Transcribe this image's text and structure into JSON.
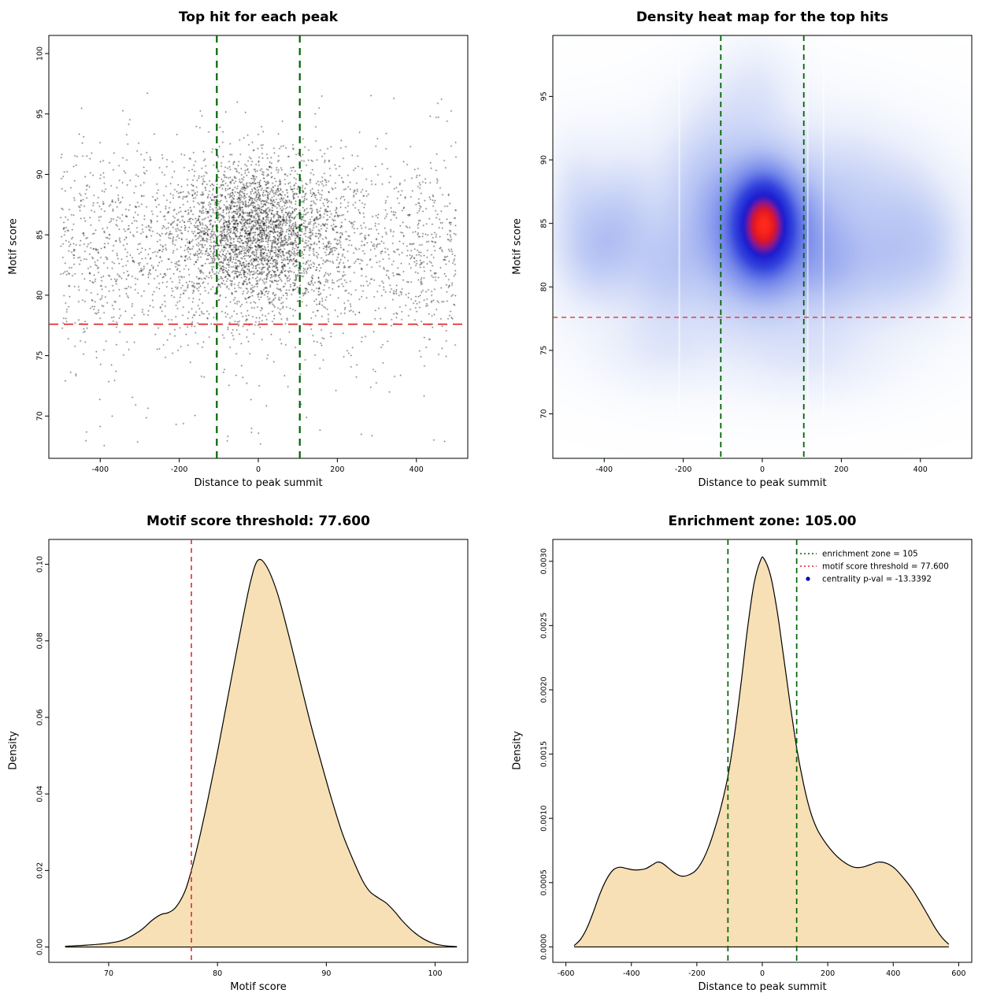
{
  "chart_data": [
    {
      "type": "scatter",
      "title": "Top hit for each peak",
      "xlabel": "Distance to peak summit",
      "ylabel": "Motif score",
      "xlim": [
        -530,
        530
      ],
      "ylim": [
        66.5,
        101.5
      ],
      "xticks": [
        -400,
        -200,
        0,
        200,
        400
      ],
      "xtick_labels": [
        "-400",
        "-200",
        "0",
        "200",
        "400"
      ],
      "yticks": [
        70,
        75,
        80,
        85,
        90,
        95,
        100
      ],
      "ytick_labels": [
        "70",
        "75",
        "80",
        "85",
        "90",
        "95",
        "100"
      ],
      "point_color": "#000000",
      "points_spec": {
        "seed": 42,
        "clip": {
          "x": [
            -500,
            500
          ],
          "y": [
            67,
            100.6
          ]
        },
        "clusters": [
          {
            "n": 2600,
            "x": {
              "dist": "normal",
              "mean": -5,
              "sd": 95
            },
            "y": {
              "dist": "normal",
              "mean": 85.3,
              "sd": 3.0
            }
          },
          {
            "n": 2200,
            "x": {
              "dist": "uniform",
              "min": -500,
              "max": 500
            },
            "y": {
              "dist": "normal",
              "mean": 83.8,
              "sd": 4.0
            }
          },
          {
            "n": 60,
            "x": {
              "dist": "uniform",
              "min": -480,
              "max": 480
            },
            "y": {
              "dist": "uniform",
              "min": 67.5,
              "max": 76.5
            }
          }
        ]
      },
      "vlines": {
        "x": [
          -105,
          105
        ],
        "color": "#006400",
        "width": 2.2,
        "dash": "9 7"
      },
      "hlines": {
        "y": [
          77.6
        ],
        "color": "#e02020",
        "width": 1.6,
        "dash": "12 7"
      }
    },
    {
      "type": "heatmap",
      "title": "Density heat map for the top hits",
      "xlabel": "Distance to peak summit",
      "ylabel": "Motif score",
      "xlim": [
        -530,
        530
      ],
      "ylim": [
        66.5,
        99.8
      ],
      "xticks": [
        -400,
        -200,
        0,
        200,
        400
      ],
      "xtick_labels": [
        "-400",
        "-200",
        "0",
        "200",
        "400"
      ],
      "yticks": [
        70,
        75,
        80,
        85,
        90,
        95
      ],
      "ytick_labels": [
        "70",
        "75",
        "80",
        "85",
        "90",
        "95"
      ],
      "gamma": 0.7,
      "gaps_x": [
        -210,
        115,
        155
      ],
      "kernels": [
        {
          "x": 5,
          "y": 85.0,
          "sx": 48,
          "sy": 2.4,
          "w": 1.0
        },
        {
          "x": 0,
          "y": 84.7,
          "sx": 85,
          "sy": 3.6,
          "w": 0.5
        },
        {
          "x": 0,
          "y": 84.0,
          "sx": 170,
          "sy": 4.6,
          "w": 0.28
        },
        {
          "x": 0,
          "y": 83.5,
          "sx": 330,
          "sy": 5.2,
          "w": 0.16
        },
        {
          "x": -430,
          "y": 82.8,
          "sx": 60,
          "sy": 2.6,
          "w": 0.2
        },
        {
          "x": -360,
          "y": 85.2,
          "sx": 55,
          "sy": 3.2,
          "w": 0.16
        },
        {
          "x": -470,
          "y": 87.5,
          "sx": 45,
          "sy": 2.8,
          "w": 0.1
        },
        {
          "x": -250,
          "y": 81.0,
          "sx": 60,
          "sy": 2.6,
          "w": 0.12
        },
        {
          "x": 180,
          "y": 81.5,
          "sx": 60,
          "sy": 2.6,
          "w": 0.14
        },
        {
          "x": 320,
          "y": 81.8,
          "sx": 70,
          "sy": 2.8,
          "w": 0.16
        },
        {
          "x": 430,
          "y": 83.2,
          "sx": 55,
          "sy": 3.0,
          "w": 0.14
        },
        {
          "x": 360,
          "y": 86.5,
          "sx": 60,
          "sy": 3.0,
          "w": 0.1
        },
        {
          "x": -260,
          "y": 75.0,
          "sx": 100,
          "sy": 2.0,
          "w": 0.08
        },
        {
          "x": 120,
          "y": 74.3,
          "sx": 130,
          "sy": 2.0,
          "w": 0.08
        },
        {
          "x": -60,
          "y": 93.5,
          "sx": 90,
          "sy": 2.8,
          "w": 0.1
        },
        {
          "x": -10,
          "y": 96.5,
          "sx": 60,
          "sy": 2.2,
          "w": 0.06
        },
        {
          "x": 240,
          "y": 88.5,
          "sx": 70,
          "sy": 3.0,
          "w": 0.09
        },
        {
          "x": -150,
          "y": 89.0,
          "sx": 60,
          "sy": 3.0,
          "w": 0.1
        }
      ],
      "colormap": [
        {
          "t": 0,
          "c": "#ffffff"
        },
        {
          "t": 0.12,
          "c": "#e9eefb"
        },
        {
          "t": 0.3,
          "c": "#b9c6f4"
        },
        {
          "t": 0.5,
          "c": "#7487ea"
        },
        {
          "t": 0.66,
          "c": "#3344dd"
        },
        {
          "t": 0.8,
          "c": "#1b1bd0"
        },
        {
          "t": 0.88,
          "c": "#8a1890"
        },
        {
          "t": 0.94,
          "c": "#e01525"
        },
        {
          "t": 1,
          "c": "#ff2a1a"
        }
      ],
      "vlines": {
        "x": [
          -105,
          105
        ],
        "color": "#006400",
        "width": 1.8,
        "dash": "7 5"
      },
      "hlines": {
        "y": [
          77.6
        ],
        "color": "#e02020",
        "width": 1.3,
        "dash": "6 5"
      }
    },
    {
      "type": "area",
      "title": "Motif score threshold: 77.600",
      "xlabel": "Motif score",
      "ylabel": "Density",
      "xlim": [
        64.5,
        103
      ],
      "ylim": [
        -0.004,
        0.1065
      ],
      "xticks": [
        70,
        80,
        90,
        100
      ],
      "xtick_labels": [
        "70",
        "80",
        "90",
        "100"
      ],
      "yticks": [
        0,
        0.02,
        0.04,
        0.06,
        0.08,
        0.1
      ],
      "ytick_labels": [
        "0.00",
        "0.02",
        "0.04",
        "0.06",
        "0.08",
        "0.10"
      ],
      "fill": "#F7E0B5",
      "line": "#000000",
      "points": [
        [
          66,
          0.0002
        ],
        [
          68,
          0.0005
        ],
        [
          70,
          0.001
        ],
        [
          71.5,
          0.002
        ],
        [
          73,
          0.0045
        ],
        [
          74,
          0.007
        ],
        [
          74.8,
          0.0085
        ],
        [
          75.5,
          0.009
        ],
        [
          76.2,
          0.0105
        ],
        [
          77,
          0.0145
        ],
        [
          77.6,
          0.02
        ],
        [
          78.3,
          0.028
        ],
        [
          79,
          0.037
        ],
        [
          80,
          0.051
        ],
        [
          81,
          0.066
        ],
        [
          82,
          0.081
        ],
        [
          83,
          0.095
        ],
        [
          83.7,
          0.101
        ],
        [
          84.5,
          0.0995
        ],
        [
          85.5,
          0.0925
        ],
        [
          86.5,
          0.082
        ],
        [
          87.5,
          0.0705
        ],
        [
          88.5,
          0.059
        ],
        [
          89.5,
          0.0485
        ],
        [
          90.5,
          0.0385
        ],
        [
          91.5,
          0.0295
        ],
        [
          92.5,
          0.0225
        ],
        [
          93.3,
          0.0175
        ],
        [
          94,
          0.0145
        ],
        [
          94.8,
          0.0128
        ],
        [
          95.5,
          0.0115
        ],
        [
          96.3,
          0.0092
        ],
        [
          97,
          0.0068
        ],
        [
          98,
          0.004
        ],
        [
          99,
          0.002
        ],
        [
          100,
          0.0008
        ],
        [
          101,
          0.0003
        ],
        [
          102,
          0.0001
        ]
      ],
      "vlines": {
        "x": [
          77.6
        ],
        "color": "#e02020",
        "width": 1.5,
        "dash": "6 5"
      }
    },
    {
      "type": "area",
      "title": "Enrichment zone: 105.00",
      "xlabel": "Distance to peak summit",
      "ylabel": "Density",
      "xlim": [
        -640,
        640
      ],
      "ylim": [
        -0.00012,
        0.00317
      ],
      "xticks": [
        -600,
        -400,
        -200,
        0,
        200,
        400,
        600
      ],
      "xtick_labels": [
        "-600",
        "-400",
        "-200",
        "0",
        "200",
        "400",
        "600"
      ],
      "yticks": [
        0,
        0.0005,
        0.001,
        0.0015,
        0.002,
        0.0025,
        0.003
      ],
      "ytick_labels": [
        "0.0000",
        "0.0005",
        "0.0010",
        "0.0015",
        "0.0020",
        "0.0025",
        "0.0030"
      ],
      "fill": "#F7E0B5",
      "line": "#000000",
      "points": [
        [
          -575,
          1e-05
        ],
        [
          -555,
          6e-05
        ],
        [
          -535,
          0.00015
        ],
        [
          -515,
          0.00028
        ],
        [
          -495,
          0.00042
        ],
        [
          -475,
          0.00053
        ],
        [
          -455,
          0.0006
        ],
        [
          -435,
          0.00062
        ],
        [
          -415,
          0.00061
        ],
        [
          -395,
          0.0006
        ],
        [
          -375,
          0.0006
        ],
        [
          -355,
          0.00061
        ],
        [
          -335,
          0.00064
        ],
        [
          -320,
          0.00066
        ],
        [
          -305,
          0.00065
        ],
        [
          -285,
          0.00061
        ],
        [
          -265,
          0.00057
        ],
        [
          -245,
          0.00055
        ],
        [
          -225,
          0.00056
        ],
        [
          -205,
          0.00059
        ],
        [
          -185,
          0.00066
        ],
        [
          -165,
          0.00077
        ],
        [
          -145,
          0.00092
        ],
        [
          -125,
          0.0011
        ],
        [
          -105,
          0.00133
        ],
        [
          -85,
          0.00165
        ],
        [
          -65,
          0.00205
        ],
        [
          -45,
          0.00248
        ],
        [
          -25,
          0.00283
        ],
        [
          -5,
          0.00301
        ],
        [
          5,
          0.00302
        ],
        [
          25,
          0.00289
        ],
        [
          45,
          0.00262
        ],
        [
          65,
          0.00226
        ],
        [
          85,
          0.00189
        ],
        [
          105,
          0.00155
        ],
        [
          125,
          0.00128
        ],
        [
          145,
          0.00107
        ],
        [
          165,
          0.00093
        ],
        [
          185,
          0.00084
        ],
        [
          205,
          0.00077
        ],
        [
          230,
          0.0007
        ],
        [
          255,
          0.00065
        ],
        [
          280,
          0.00062
        ],
        [
          305,
          0.00062
        ],
        [
          330,
          0.00064
        ],
        [
          355,
          0.00066
        ],
        [
          380,
          0.00065
        ],
        [
          405,
          0.00061
        ],
        [
          430,
          0.00054
        ],
        [
          455,
          0.00046
        ],
        [
          480,
          0.00036
        ],
        [
          505,
          0.00025
        ],
        [
          530,
          0.00014
        ],
        [
          550,
          7e-05
        ],
        [
          570,
          2e-05
        ]
      ],
      "vlines": {
        "x": [
          -105,
          105
        ],
        "color": "#006400",
        "width": 1.7,
        "dash": "7 5"
      },
      "legend": {
        "position": "top-right",
        "items": [
          {
            "label": "enrichment zone = 105",
            "marker": "dotted-line",
            "color": "#006400"
          },
          {
            "label": "motif score threshold = 77.600",
            "marker": "dotted-line",
            "color": "#e02020"
          },
          {
            "label": "centrality p-val = -13.3392",
            "marker": "dot",
            "color": "#0000b8"
          }
        ]
      }
    }
  ]
}
